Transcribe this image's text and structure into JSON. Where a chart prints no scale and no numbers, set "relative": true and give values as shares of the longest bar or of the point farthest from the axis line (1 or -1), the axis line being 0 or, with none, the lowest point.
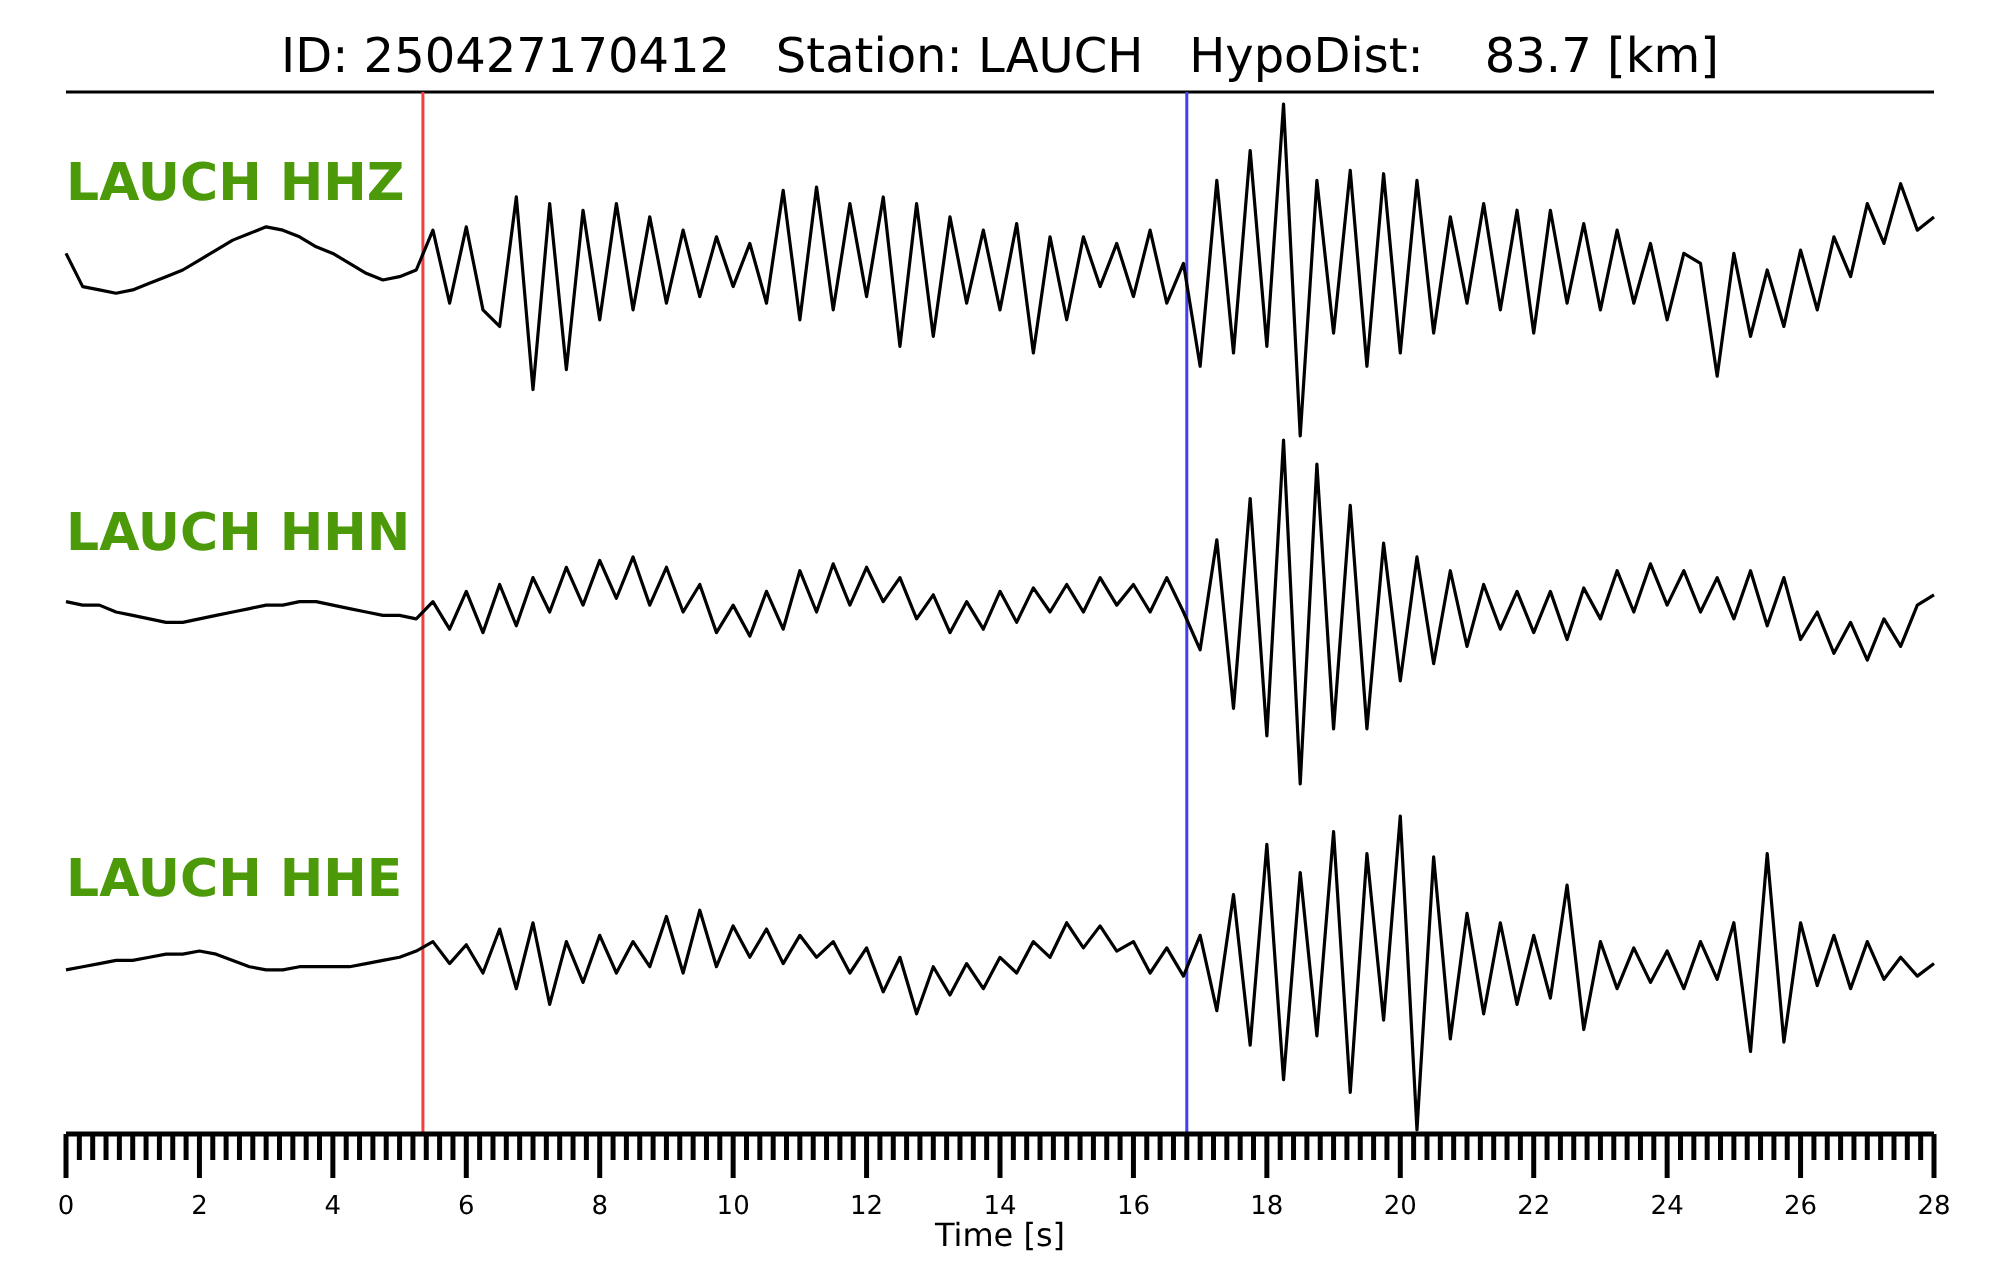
{
  "chart_data": [
    {
      "type": "line",
      "title": "ID: 250427170412   Station: LAUCH   HypoDist:    83.7 [km]",
      "relative": true,
      "xlim": [
        0,
        28
      ],
      "tick_labels": false,
      "x": [
        0,
        0.25,
        0.5,
        0.75,
        1,
        1.25,
        1.5,
        1.75,
        2,
        2.25,
        2.5,
        2.75,
        3,
        3.25,
        3.5,
        3.75,
        4,
        4.25,
        4.5,
        4.75,
        5,
        5.25,
        5.5,
        5.75,
        6,
        6.25,
        6.5,
        6.75,
        7,
        7.25,
        7.5,
        7.75,
        8,
        8.25,
        8.5,
        8.75,
        9,
        9.25,
        9.5,
        9.75,
        10,
        10.25,
        10.5,
        10.75,
        11,
        11.25,
        11.5,
        11.75,
        12,
        12.25,
        12.5,
        12.75,
        13,
        13.25,
        13.5,
        13.75,
        14,
        14.25,
        14.5,
        14.75,
        15,
        15.25,
        15.5,
        15.75,
        16,
        16.25,
        16.5,
        16.75,
        17,
        17.25,
        17.5,
        17.75,
        18,
        18.25,
        18.5,
        18.75,
        19,
        19.25,
        19.5,
        19.75,
        20,
        20.25,
        20.5,
        20.75,
        21,
        21.25,
        21.5,
        21.75,
        22,
        22.25,
        22.5,
        22.75,
        23,
        23.25,
        23.5,
        23.75,
        24,
        24.25,
        24.5,
        24.75,
        25,
        25.25,
        25.5,
        25.75,
        26,
        26.25,
        26.5,
        26.75,
        27,
        27.25,
        27.5,
        27.75,
        28
      ],
      "series": [
        {
          "name": "LAUCH HHZ",
          "color": "#000000",
          "values": [
            0.55,
            0.45,
            0.44,
            0.43,
            0.44,
            0.46,
            0.48,
            0.5,
            0.53,
            0.56,
            0.59,
            0.61,
            0.63,
            0.62,
            0.6,
            0.57,
            0.55,
            0.52,
            0.49,
            0.47,
            0.48,
            0.5,
            0.62,
            0.4,
            0.63,
            0.38,
            0.33,
            0.72,
            0.14,
            0.7,
            0.2,
            0.68,
            0.35,
            0.7,
            0.38,
            0.66,
            0.4,
            0.62,
            0.42,
            0.6,
            0.45,
            0.58,
            0.4,
            0.74,
            0.35,
            0.75,
            0.38,
            0.7,
            0.42,
            0.72,
            0.27,
            0.7,
            0.3,
            0.66,
            0.4,
            0.62,
            0.38,
            0.64,
            0.25,
            0.6,
            0.35,
            0.6,
            0.45,
            0.58,
            0.42,
            0.62,
            0.4,
            0.52,
            0.21,
            0.77,
            0.25,
            0.86,
            0.27,
            1.0,
            0.0,
            0.77,
            0.31,
            0.8,
            0.21,
            0.79,
            0.25,
            0.77,
            0.31,
            0.66,
            0.4,
            0.7,
            0.38,
            0.68,
            0.31,
            0.68,
            0.4,
            0.64,
            0.38,
            0.62,
            0.4,
            0.58,
            0.35,
            0.55,
            0.52,
            0.18,
            0.55,
            0.3,
            0.5,
            0.33,
            0.56,
            0.38,
            0.6,
            0.48,
            0.7,
            0.58,
            0.76,
            0.62,
            0.66
          ]
        }
      ],
      "ref_lines": [
        {
          "axis": "x",
          "value": 5.35,
          "color": "#f04040"
        },
        {
          "axis": "x",
          "value": 16.8,
          "color": "#4040f0"
        }
      ]
    },
    {
      "type": "line",
      "relative": true,
      "xlim": [
        0,
        28
      ],
      "tick_labels": false,
      "x": [
        0,
        0.25,
        0.5,
        0.75,
        1,
        1.25,
        1.5,
        1.75,
        2,
        2.25,
        2.5,
        2.75,
        3,
        3.25,
        3.5,
        3.75,
        4,
        4.25,
        4.5,
        4.75,
        5,
        5.25,
        5.5,
        5.75,
        6,
        6.25,
        6.5,
        6.75,
        7,
        7.25,
        7.5,
        7.75,
        8,
        8.25,
        8.5,
        8.75,
        9,
        9.25,
        9.5,
        9.75,
        10,
        10.25,
        10.5,
        10.75,
        11,
        11.25,
        11.5,
        11.75,
        12,
        12.25,
        12.5,
        12.75,
        13,
        13.25,
        13.5,
        13.75,
        14,
        14.25,
        14.5,
        14.75,
        15,
        15.25,
        15.5,
        15.75,
        16,
        16.25,
        16.5,
        16.75,
        17,
        17.25,
        17.5,
        17.75,
        18,
        18.25,
        18.5,
        18.75,
        19,
        19.25,
        19.5,
        19.75,
        20,
        20.25,
        20.5,
        20.75,
        21,
        21.25,
        21.5,
        21.75,
        22,
        22.25,
        22.5,
        22.75,
        23,
        23.25,
        23.5,
        23.75,
        24,
        24.25,
        24.5,
        24.75,
        25,
        25.25,
        25.5,
        25.75,
        26,
        26.25,
        26.5,
        26.75,
        27,
        27.25,
        27.5,
        27.75,
        28
      ],
      "series": [
        {
          "name": "LAUCH HHN",
          "color": "#000000",
          "values": [
            0.53,
            0.52,
            0.52,
            0.5,
            0.49,
            0.48,
            0.47,
            0.47,
            0.48,
            0.49,
            0.5,
            0.51,
            0.52,
            0.52,
            0.53,
            0.53,
            0.52,
            0.51,
            0.5,
            0.49,
            0.49,
            0.48,
            0.53,
            0.45,
            0.56,
            0.44,
            0.58,
            0.46,
            0.6,
            0.5,
            0.63,
            0.52,
            0.65,
            0.54,
            0.66,
            0.52,
            0.63,
            0.5,
            0.58,
            0.44,
            0.52,
            0.43,
            0.56,
            0.45,
            0.62,
            0.5,
            0.64,
            0.52,
            0.63,
            0.53,
            0.6,
            0.48,
            0.55,
            0.44,
            0.53,
            0.45,
            0.56,
            0.47,
            0.57,
            0.5,
            0.58,
            0.5,
            0.6,
            0.52,
            0.58,
            0.5,
            0.6,
            0.5,
            0.39,
            0.71,
            0.22,
            0.83,
            0.14,
            1.0,
            0.0,
            0.93,
            0.16,
            0.81,
            0.16,
            0.7,
            0.3,
            0.66,
            0.35,
            0.62,
            0.4,
            0.58,
            0.45,
            0.56,
            0.44,
            0.56,
            0.42,
            0.57,
            0.48,
            0.62,
            0.5,
            0.64,
            0.52,
            0.62,
            0.5,
            0.6,
            0.48,
            0.62,
            0.46,
            0.6,
            0.42,
            0.5,
            0.38,
            0.47,
            0.36,
            0.48,
            0.4,
            0.52,
            0.55
          ]
        }
      ],
      "ref_lines": [
        {
          "axis": "x",
          "value": 5.35,
          "color": "#f04040"
        },
        {
          "axis": "x",
          "value": 16.8,
          "color": "#4040f0"
        }
      ]
    },
    {
      "type": "line",
      "relative": true,
      "xlabel": "Time [s]",
      "xlim": [
        0,
        28
      ],
      "tick_labels": "x",
      "xticks": [
        0,
        {
          "value": 0.2,
          "label": null
        },
        {
          "value": 0.4,
          "label": null
        },
        {
          "value": 0.6,
          "label": null
        },
        {
          "value": 0.8,
          "label": null
        },
        {
          "value": 1,
          "label": null
        },
        {
          "value": 1.2,
          "label": null
        },
        {
          "value": 1.4,
          "label": null
        },
        {
          "value": 1.6,
          "label": null
        },
        {
          "value": 1.8,
          "label": null
        },
        2,
        {
          "value": 2.2,
          "label": null
        },
        {
          "value": 2.4,
          "label": null
        },
        {
          "value": 2.6,
          "label": null
        },
        {
          "value": 2.8,
          "label": null
        },
        {
          "value": 3,
          "label": null
        },
        {
          "value": 3.2,
          "label": null
        },
        {
          "value": 3.4,
          "label": null
        },
        {
          "value": 3.6,
          "label": null
        },
        {
          "value": 3.8,
          "label": null
        },
        4,
        {
          "value": 4.2,
          "label": null
        },
        {
          "value": 4.4,
          "label": null
        },
        {
          "value": 4.6,
          "label": null
        },
        {
          "value": 4.8,
          "label": null
        },
        {
          "value": 5,
          "label": null
        },
        {
          "value": 5.2,
          "label": null
        },
        {
          "value": 5.4,
          "label": null
        },
        {
          "value": 5.6,
          "label": null
        },
        {
          "value": 5.8,
          "label": null
        },
        6,
        {
          "value": 6.2,
          "label": null
        },
        {
          "value": 6.4,
          "label": null
        },
        {
          "value": 6.6,
          "label": null
        },
        {
          "value": 6.8,
          "label": null
        },
        {
          "value": 7,
          "label": null
        },
        {
          "value": 7.2,
          "label": null
        },
        {
          "value": 7.4,
          "label": null
        },
        {
          "value": 7.6,
          "label": null
        },
        {
          "value": 7.8,
          "label": null
        },
        8,
        {
          "value": 8.2,
          "label": null
        },
        {
          "value": 8.4,
          "label": null
        },
        {
          "value": 8.6,
          "label": null
        },
        {
          "value": 8.8,
          "label": null
        },
        {
          "value": 9,
          "label": null
        },
        {
          "value": 9.2,
          "label": null
        },
        {
          "value": 9.4,
          "label": null
        },
        {
          "value": 9.6,
          "label": null
        },
        {
          "value": 9.8,
          "label": null
        },
        10,
        {
          "value": 10.2,
          "label": null
        },
        {
          "value": 10.4,
          "label": null
        },
        {
          "value": 10.6,
          "label": null
        },
        {
          "value": 10.8,
          "label": null
        },
        {
          "value": 11,
          "label": null
        },
        {
          "value": 11.2,
          "label": null
        },
        {
          "value": 11.4,
          "label": null
        },
        {
          "value": 11.6,
          "label": null
        },
        {
          "value": 11.8,
          "label": null
        },
        12,
        {
          "value": 12.2,
          "label": null
        },
        {
          "value": 12.4,
          "label": null
        },
        {
          "value": 12.6,
          "label": null
        },
        {
          "value": 12.8,
          "label": null
        },
        {
          "value": 13,
          "label": null
        },
        {
          "value": 13.2,
          "label": null
        },
        {
          "value": 13.4,
          "label": null
        },
        {
          "value": 13.6,
          "label": null
        },
        {
          "value": 13.8,
          "label": null
        },
        14,
        {
          "value": 14.2,
          "label": null
        },
        {
          "value": 14.4,
          "label": null
        },
        {
          "value": 14.6,
          "label": null
        },
        {
          "value": 14.8,
          "label": null
        },
        {
          "value": 15,
          "label": null
        },
        {
          "value": 15.2,
          "label": null
        },
        {
          "value": 15.4,
          "label": null
        },
        {
          "value": 15.6,
          "label": null
        },
        {
          "value": 15.8,
          "label": null
        },
        16,
        {
          "value": 16.2,
          "label": null
        },
        {
          "value": 16.4,
          "label": null
        },
        {
          "value": 16.6,
          "label": null
        },
        {
          "value": 16.8,
          "label": null
        },
        {
          "value": 17,
          "label": null
        },
        {
          "value": 17.2,
          "label": null
        },
        {
          "value": 17.4,
          "label": null
        },
        {
          "value": 17.6,
          "label": null
        },
        {
          "value": 17.8,
          "label": null
        },
        18,
        {
          "value": 18.2,
          "label": null
        },
        {
          "value": 18.4,
          "label": null
        },
        {
          "value": 18.6,
          "label": null
        },
        {
          "value": 18.8,
          "label": null
        },
        {
          "value": 19,
          "label": null
        },
        {
          "value": 19.2,
          "label": null
        },
        {
          "value": 19.4,
          "label": null
        },
        {
          "value": 19.6,
          "label": null
        },
        {
          "value": 19.8,
          "label": null
        },
        20,
        {
          "value": 20.2,
          "label": null
        },
        {
          "value": 20.4,
          "label": null
        },
        {
          "value": 20.6,
          "label": null
        },
        {
          "value": 20.8,
          "label": null
        },
        {
          "value": 21,
          "label": null
        },
        {
          "value": 21.2,
          "label": null
        },
        {
          "value": 21.4,
          "label": null
        },
        {
          "value": 21.6,
          "label": null
        },
        {
          "value": 21.8,
          "label": null
        },
        22,
        {
          "value": 22.2,
          "label": null
        },
        {
          "value": 22.4,
          "label": null
        },
        {
          "value": 22.6,
          "label": null
        },
        {
          "value": 22.8,
          "label": null
        },
        {
          "value": 23,
          "label": null
        },
        {
          "value": 23.2,
          "label": null
        },
        {
          "value": 23.4,
          "label": null
        },
        {
          "value": 23.6,
          "label": null
        },
        {
          "value": 23.8,
          "label": null
        },
        24,
        {
          "value": 24.2,
          "label": null
        },
        {
          "value": 24.4,
          "label": null
        },
        {
          "value": 24.6,
          "label": null
        },
        {
          "value": 24.8,
          "label": null
        },
        {
          "value": 25,
          "label": null
        },
        {
          "value": 25.2,
          "label": null
        },
        {
          "value": 25.4,
          "label": null
        },
        {
          "value": 25.6,
          "label": null
        },
        {
          "value": 25.8,
          "label": null
        },
        26,
        {
          "value": 26.2,
          "label": null
        },
        {
          "value": 26.4,
          "label": null
        },
        {
          "value": 26.6,
          "label": null
        },
        {
          "value": 26.8,
          "label": null
        },
        {
          "value": 27,
          "label": null
        },
        {
          "value": 27.2,
          "label": null
        },
        {
          "value": 27.4,
          "label": null
        },
        {
          "value": 27.6,
          "label": null
        },
        {
          "value": 27.8,
          "label": null
        },
        28
      ],
      "x": [
        0,
        0.25,
        0.5,
        0.75,
        1,
        1.25,
        1.5,
        1.75,
        2,
        2.25,
        2.5,
        2.75,
        3,
        3.25,
        3.5,
        3.75,
        4,
        4.25,
        4.5,
        4.75,
        5,
        5.25,
        5.5,
        5.75,
        6,
        6.25,
        6.5,
        6.75,
        7,
        7.25,
        7.5,
        7.75,
        8,
        8.25,
        8.5,
        8.75,
        9,
        9.25,
        9.5,
        9.75,
        10,
        10.25,
        10.5,
        10.75,
        11,
        11.25,
        11.5,
        11.75,
        12,
        12.25,
        12.5,
        12.75,
        13,
        13.25,
        13.5,
        13.75,
        14,
        14.25,
        14.5,
        14.75,
        15,
        15.25,
        15.5,
        15.75,
        16,
        16.25,
        16.5,
        16.75,
        17,
        17.25,
        17.5,
        17.75,
        18,
        18.25,
        18.5,
        18.75,
        19,
        19.25,
        19.5,
        19.75,
        20,
        20.25,
        20.5,
        20.75,
        21,
        21.25,
        21.5,
        21.75,
        22,
        22.25,
        22.5,
        22.75,
        23,
        23.25,
        23.5,
        23.75,
        24,
        24.25,
        24.5,
        24.75,
        25,
        25.25,
        25.5,
        25.75,
        26,
        26.25,
        26.5,
        26.75,
        27,
        27.25,
        27.5,
        27.75,
        28
      ],
      "series": [
        {
          "name": "LAUCH HHE",
          "color": "#000000",
          "values": [
            0.51,
            0.52,
            0.53,
            0.54,
            0.54,
            0.55,
            0.56,
            0.56,
            0.57,
            0.56,
            0.54,
            0.52,
            0.51,
            0.51,
            0.52,
            0.52,
            0.52,
            0.52,
            0.53,
            0.54,
            0.55,
            0.57,
            0.6,
            0.53,
            0.59,
            0.5,
            0.64,
            0.45,
            0.66,
            0.4,
            0.6,
            0.47,
            0.62,
            0.5,
            0.6,
            0.52,
            0.68,
            0.5,
            0.7,
            0.52,
            0.65,
            0.55,
            0.64,
            0.53,
            0.62,
            0.55,
            0.6,
            0.5,
            0.58,
            0.44,
            0.55,
            0.37,
            0.52,
            0.43,
            0.53,
            0.45,
            0.55,
            0.5,
            0.6,
            0.55,
            0.66,
            0.58,
            0.65,
            0.57,
            0.6,
            0.5,
            0.58,
            0.49,
            0.62,
            0.38,
            0.75,
            0.27,
            0.91,
            0.16,
            0.82,
            0.3,
            0.95,
            0.12,
            0.88,
            0.35,
            1.0,
            0.0,
            0.87,
            0.29,
            0.69,
            0.37,
            0.66,
            0.4,
            0.62,
            0.42,
            0.78,
            0.32,
            0.6,
            0.45,
            0.58,
            0.47,
            0.57,
            0.45,
            0.6,
            0.48,
            0.66,
            0.25,
            0.88,
            0.28,
            0.66,
            0.46,
            0.62,
            0.45,
            0.6,
            0.48,
            0.55,
            0.49,
            0.53
          ]
        }
      ],
      "ref_lines": [
        {
          "axis": "x",
          "value": 5.35,
          "color": "#f04040"
        },
        {
          "axis": "x",
          "value": 16.8,
          "color": "#4040f0"
        }
      ]
    }
  ]
}
